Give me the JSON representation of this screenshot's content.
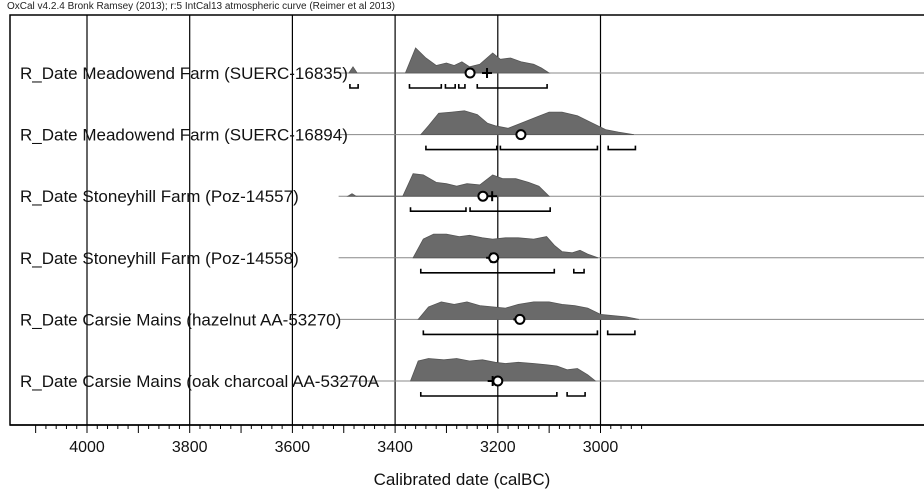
{
  "header_note": "OxCal v4.2.4 Bronk Ramsey (2013); r:5 IntCal13 atmospheric curve (Reimer et al 2013)",
  "chart_data": {
    "type": "area",
    "xlabel": "Calibrated date (calBC)",
    "xlim": [
      4100,
      2920
    ],
    "x_ticks": [
      4000,
      3800,
      3600,
      3400,
      3200,
      3000
    ],
    "x_tick_labels": [
      "4000",
      "3800",
      "3600",
      "3400",
      "3200",
      "3000"
    ],
    "minor_tick_step": 20,
    "grid": "vertical lines at labelled ticks",
    "series": [
      {
        "name": "R_Date Meadowend Farm (SUERC-16835)",
        "start": 3510,
        "density": [
          [
            3490,
            0
          ],
          [
            3482,
            0.25
          ],
          [
            3474,
            0
          ],
          [
            3380,
            0
          ],
          [
            3360,
            1.0
          ],
          [
            3340,
            0.6
          ],
          [
            3320,
            0.3
          ],
          [
            3300,
            0.4
          ],
          [
            3285,
            0.3
          ],
          [
            3270,
            0.45
          ],
          [
            3255,
            0.25
          ],
          [
            3235,
            0.35
          ],
          [
            3210,
            0.8
          ],
          [
            3195,
            0.55
          ],
          [
            3175,
            0.6
          ],
          [
            3155,
            0.45
          ],
          [
            3130,
            0.35
          ],
          [
            3115,
            0.2
          ],
          [
            3100,
            0
          ]
        ],
        "ranges": [
          [
            3488,
            3472
          ],
          [
            3372,
            3310
          ],
          [
            3302,
            3283
          ],
          [
            3276,
            3264
          ],
          [
            3240,
            3104
          ]
        ],
        "circle": 3254,
        "cross": 3221
      },
      {
        "name": "R_Date Meadowend Farm (SUERC-16894)",
        "start": 3510,
        "density": [
          [
            3350,
            0
          ],
          [
            3335,
            0.35
          ],
          [
            3315,
            0.85
          ],
          [
            3290,
            0.9
          ],
          [
            3265,
            0.95
          ],
          [
            3240,
            0.8
          ],
          [
            3220,
            0.45
          ],
          [
            3205,
            0.35
          ],
          [
            3180,
            0.25
          ],
          [
            3155,
            0.45
          ],
          [
            3125,
            0.7
          ],
          [
            3100,
            0.9
          ],
          [
            3075,
            0.9
          ],
          [
            3045,
            0.75
          ],
          [
            3015,
            0.45
          ],
          [
            2990,
            0.2
          ],
          [
            2965,
            0.1
          ],
          [
            2935,
            0
          ]
        ],
        "ranges": [
          [
            3340,
            3202
          ],
          [
            3195,
            3006
          ],
          [
            2985,
            2932
          ]
        ],
        "circle": 3155,
        "cross": 3155
      },
      {
        "name": "R_Date Stoneyhill Farm (Poz-14557)",
        "start": 3510,
        "density": [
          [
            3492,
            0
          ],
          [
            3484,
            0.1
          ],
          [
            3476,
            0
          ],
          [
            3385,
            0
          ],
          [
            3365,
            0.9
          ],
          [
            3345,
            0.85
          ],
          [
            3320,
            0.55
          ],
          [
            3300,
            0.5
          ],
          [
            3280,
            0.4
          ],
          [
            3260,
            0.5
          ],
          [
            3235,
            0.45
          ],
          [
            3210,
            0.85
          ],
          [
            3190,
            0.7
          ],
          [
            3165,
            0.7
          ],
          [
            3140,
            0.55
          ],
          [
            3120,
            0.4
          ],
          [
            3100,
            0
          ]
        ],
        "ranges": [
          [
            3370,
            3262
          ],
          [
            3254,
            3098
          ]
        ],
        "circle": 3229,
        "cross": 3211
      },
      {
        "name": "R_Date Stoneyhill Farm (Poz-14558)",
        "start": 3510,
        "density": [
          [
            3365,
            0
          ],
          [
            3345,
            0.75
          ],
          [
            3325,
            0.95
          ],
          [
            3300,
            0.95
          ],
          [
            3275,
            0.85
          ],
          [
            3255,
            0.9
          ],
          [
            3230,
            0.8
          ],
          [
            3210,
            0.75
          ],
          [
            3185,
            0.8
          ],
          [
            3160,
            0.8
          ],
          [
            3130,
            0.75
          ],
          [
            3105,
            0.85
          ],
          [
            3090,
            0.5
          ],
          [
            3075,
            0.25
          ],
          [
            3055,
            0.2
          ],
          [
            3040,
            0.3
          ],
          [
            3025,
            0.15
          ],
          [
            3005,
            0
          ]
        ],
        "ranges": [
          [
            3350,
            3090
          ],
          [
            3052,
            3032
          ]
        ],
        "circle": 3208,
        "cross": 3213
      },
      {
        "name": "R_Date Carsie Mains (hazelnut AA-53270)",
        "start": 3510,
        "density": [
          [
            3355,
            0
          ],
          [
            3335,
            0.5
          ],
          [
            3310,
            0.7
          ],
          [
            3285,
            0.6
          ],
          [
            3260,
            0.7
          ],
          [
            3235,
            0.55
          ],
          [
            3210,
            0.5
          ],
          [
            3185,
            0.45
          ],
          [
            3160,
            0.6
          ],
          [
            3130,
            0.7
          ],
          [
            3100,
            0.7
          ],
          [
            3075,
            0.6
          ],
          [
            3050,
            0.55
          ],
          [
            3025,
            0.45
          ],
          [
            3000,
            0.2
          ],
          [
            2975,
            0.15
          ],
          [
            2950,
            0.1
          ],
          [
            2925,
            0
          ]
        ],
        "ranges": [
          [
            3345,
            3006
          ],
          [
            2986,
            2933
          ]
        ],
        "circle": 3157,
        "cross": 3160
      },
      {
        "name": "R_Date Carsie Mains (oak charcoal AA-53270A",
        "start": 3510,
        "density": [
          [
            3370,
            0
          ],
          [
            3355,
            0.8
          ],
          [
            3335,
            0.9
          ],
          [
            3305,
            0.85
          ],
          [
            3280,
            0.9
          ],
          [
            3255,
            0.8
          ],
          [
            3230,
            0.85
          ],
          [
            3205,
            0.75
          ],
          [
            3185,
            0.7
          ],
          [
            3160,
            0.75
          ],
          [
            3130,
            0.7
          ],
          [
            3105,
            0.65
          ],
          [
            3085,
            0.6
          ],
          [
            3065,
            0.45
          ],
          [
            3045,
            0.5
          ],
          [
            3025,
            0.25
          ],
          [
            3010,
            0
          ]
        ],
        "ranges": [
          [
            3350,
            3085
          ],
          [
            3065,
            3030
          ]
        ],
        "circle": 3200,
        "cross": 3210
      }
    ]
  }
}
